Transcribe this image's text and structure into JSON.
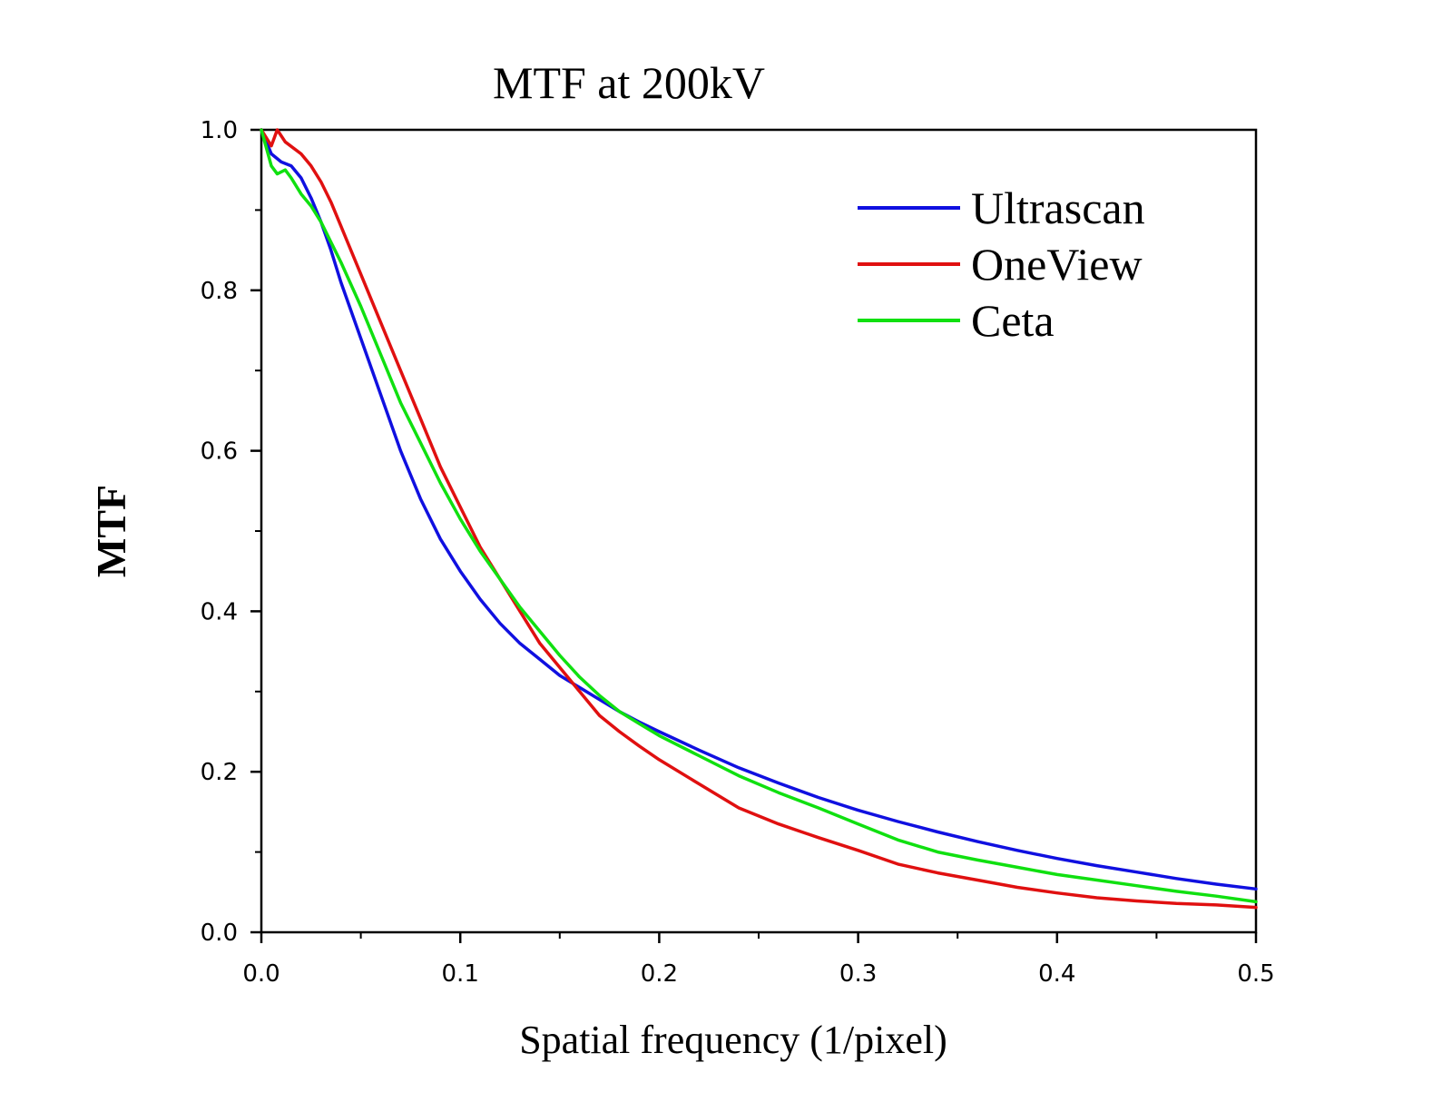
{
  "chart_data": {
    "type": "line",
    "title": "MTF at 200kV",
    "xlabel": "Spatial frequency (1/pixel)",
    "ylabel": "MTF",
    "xlim": [
      0.0,
      0.5
    ],
    "ylim": [
      0.0,
      1.0
    ],
    "xticks": [
      "0.0",
      "0.1",
      "0.2",
      "0.3",
      "0.4",
      "0.5"
    ],
    "yticks": [
      "0.0",
      "0.2",
      "0.4",
      "0.6",
      "0.8",
      "1.0"
    ],
    "grid": false,
    "legend_position": "top-right",
    "series": [
      {
        "name": "Ultrascan",
        "color": "#1010e0",
        "x": [
          0.0,
          0.005,
          0.01,
          0.015,
          0.02,
          0.025,
          0.03,
          0.035,
          0.04,
          0.05,
          0.06,
          0.07,
          0.08,
          0.09,
          0.1,
          0.11,
          0.12,
          0.13,
          0.14,
          0.15,
          0.16,
          0.17,
          0.18,
          0.19,
          0.2,
          0.22,
          0.24,
          0.26,
          0.28,
          0.3,
          0.32,
          0.34,
          0.36,
          0.38,
          0.4,
          0.42,
          0.44,
          0.46,
          0.48,
          0.5
        ],
        "y": [
          1.0,
          0.97,
          0.96,
          0.955,
          0.94,
          0.915,
          0.885,
          0.85,
          0.81,
          0.74,
          0.67,
          0.6,
          0.54,
          0.49,
          0.45,
          0.415,
          0.385,
          0.36,
          0.34,
          0.32,
          0.305,
          0.29,
          0.275,
          0.262,
          0.25,
          0.227,
          0.205,
          0.186,
          0.168,
          0.152,
          0.138,
          0.125,
          0.113,
          0.102,
          0.092,
          0.083,
          0.075,
          0.067,
          0.06,
          0.054
        ]
      },
      {
        "name": "OneView",
        "color": "#e01010",
        "x": [
          0.0,
          0.005,
          0.008,
          0.012,
          0.02,
          0.025,
          0.03,
          0.035,
          0.04,
          0.05,
          0.06,
          0.07,
          0.08,
          0.09,
          0.1,
          0.11,
          0.12,
          0.13,
          0.14,
          0.15,
          0.16,
          0.17,
          0.18,
          0.19,
          0.2,
          0.22,
          0.24,
          0.26,
          0.28,
          0.3,
          0.32,
          0.34,
          0.36,
          0.38,
          0.4,
          0.42,
          0.44,
          0.46,
          0.48,
          0.5
        ],
        "y": [
          1.0,
          0.98,
          1.0,
          0.985,
          0.97,
          0.955,
          0.935,
          0.91,
          0.88,
          0.82,
          0.76,
          0.7,
          0.64,
          0.58,
          0.53,
          0.48,
          0.44,
          0.4,
          0.36,
          0.33,
          0.3,
          0.27,
          0.25,
          0.232,
          0.215,
          0.185,
          0.155,
          0.135,
          0.118,
          0.102,
          0.085,
          0.074,
          0.065,
          0.056,
          0.049,
          0.043,
          0.039,
          0.036,
          0.034,
          0.031
        ]
      },
      {
        "name": "Ceta",
        "color": "#10e010",
        "x": [
          0.0,
          0.005,
          0.008,
          0.012,
          0.015,
          0.02,
          0.025,
          0.03,
          0.035,
          0.04,
          0.05,
          0.06,
          0.07,
          0.08,
          0.09,
          0.1,
          0.11,
          0.12,
          0.13,
          0.14,
          0.15,
          0.16,
          0.17,
          0.18,
          0.19,
          0.2,
          0.22,
          0.24,
          0.26,
          0.28,
          0.3,
          0.32,
          0.34,
          0.36,
          0.38,
          0.4,
          0.42,
          0.44,
          0.46,
          0.48,
          0.5
        ],
        "y": [
          1.0,
          0.955,
          0.945,
          0.95,
          0.94,
          0.92,
          0.905,
          0.885,
          0.86,
          0.835,
          0.78,
          0.72,
          0.66,
          0.61,
          0.56,
          0.515,
          0.475,
          0.44,
          0.405,
          0.375,
          0.345,
          0.318,
          0.295,
          0.275,
          0.26,
          0.245,
          0.22,
          0.195,
          0.174,
          0.155,
          0.135,
          0.115,
          0.1,
          0.09,
          0.081,
          0.072,
          0.065,
          0.058,
          0.051,
          0.045,
          0.038
        ]
      }
    ]
  }
}
